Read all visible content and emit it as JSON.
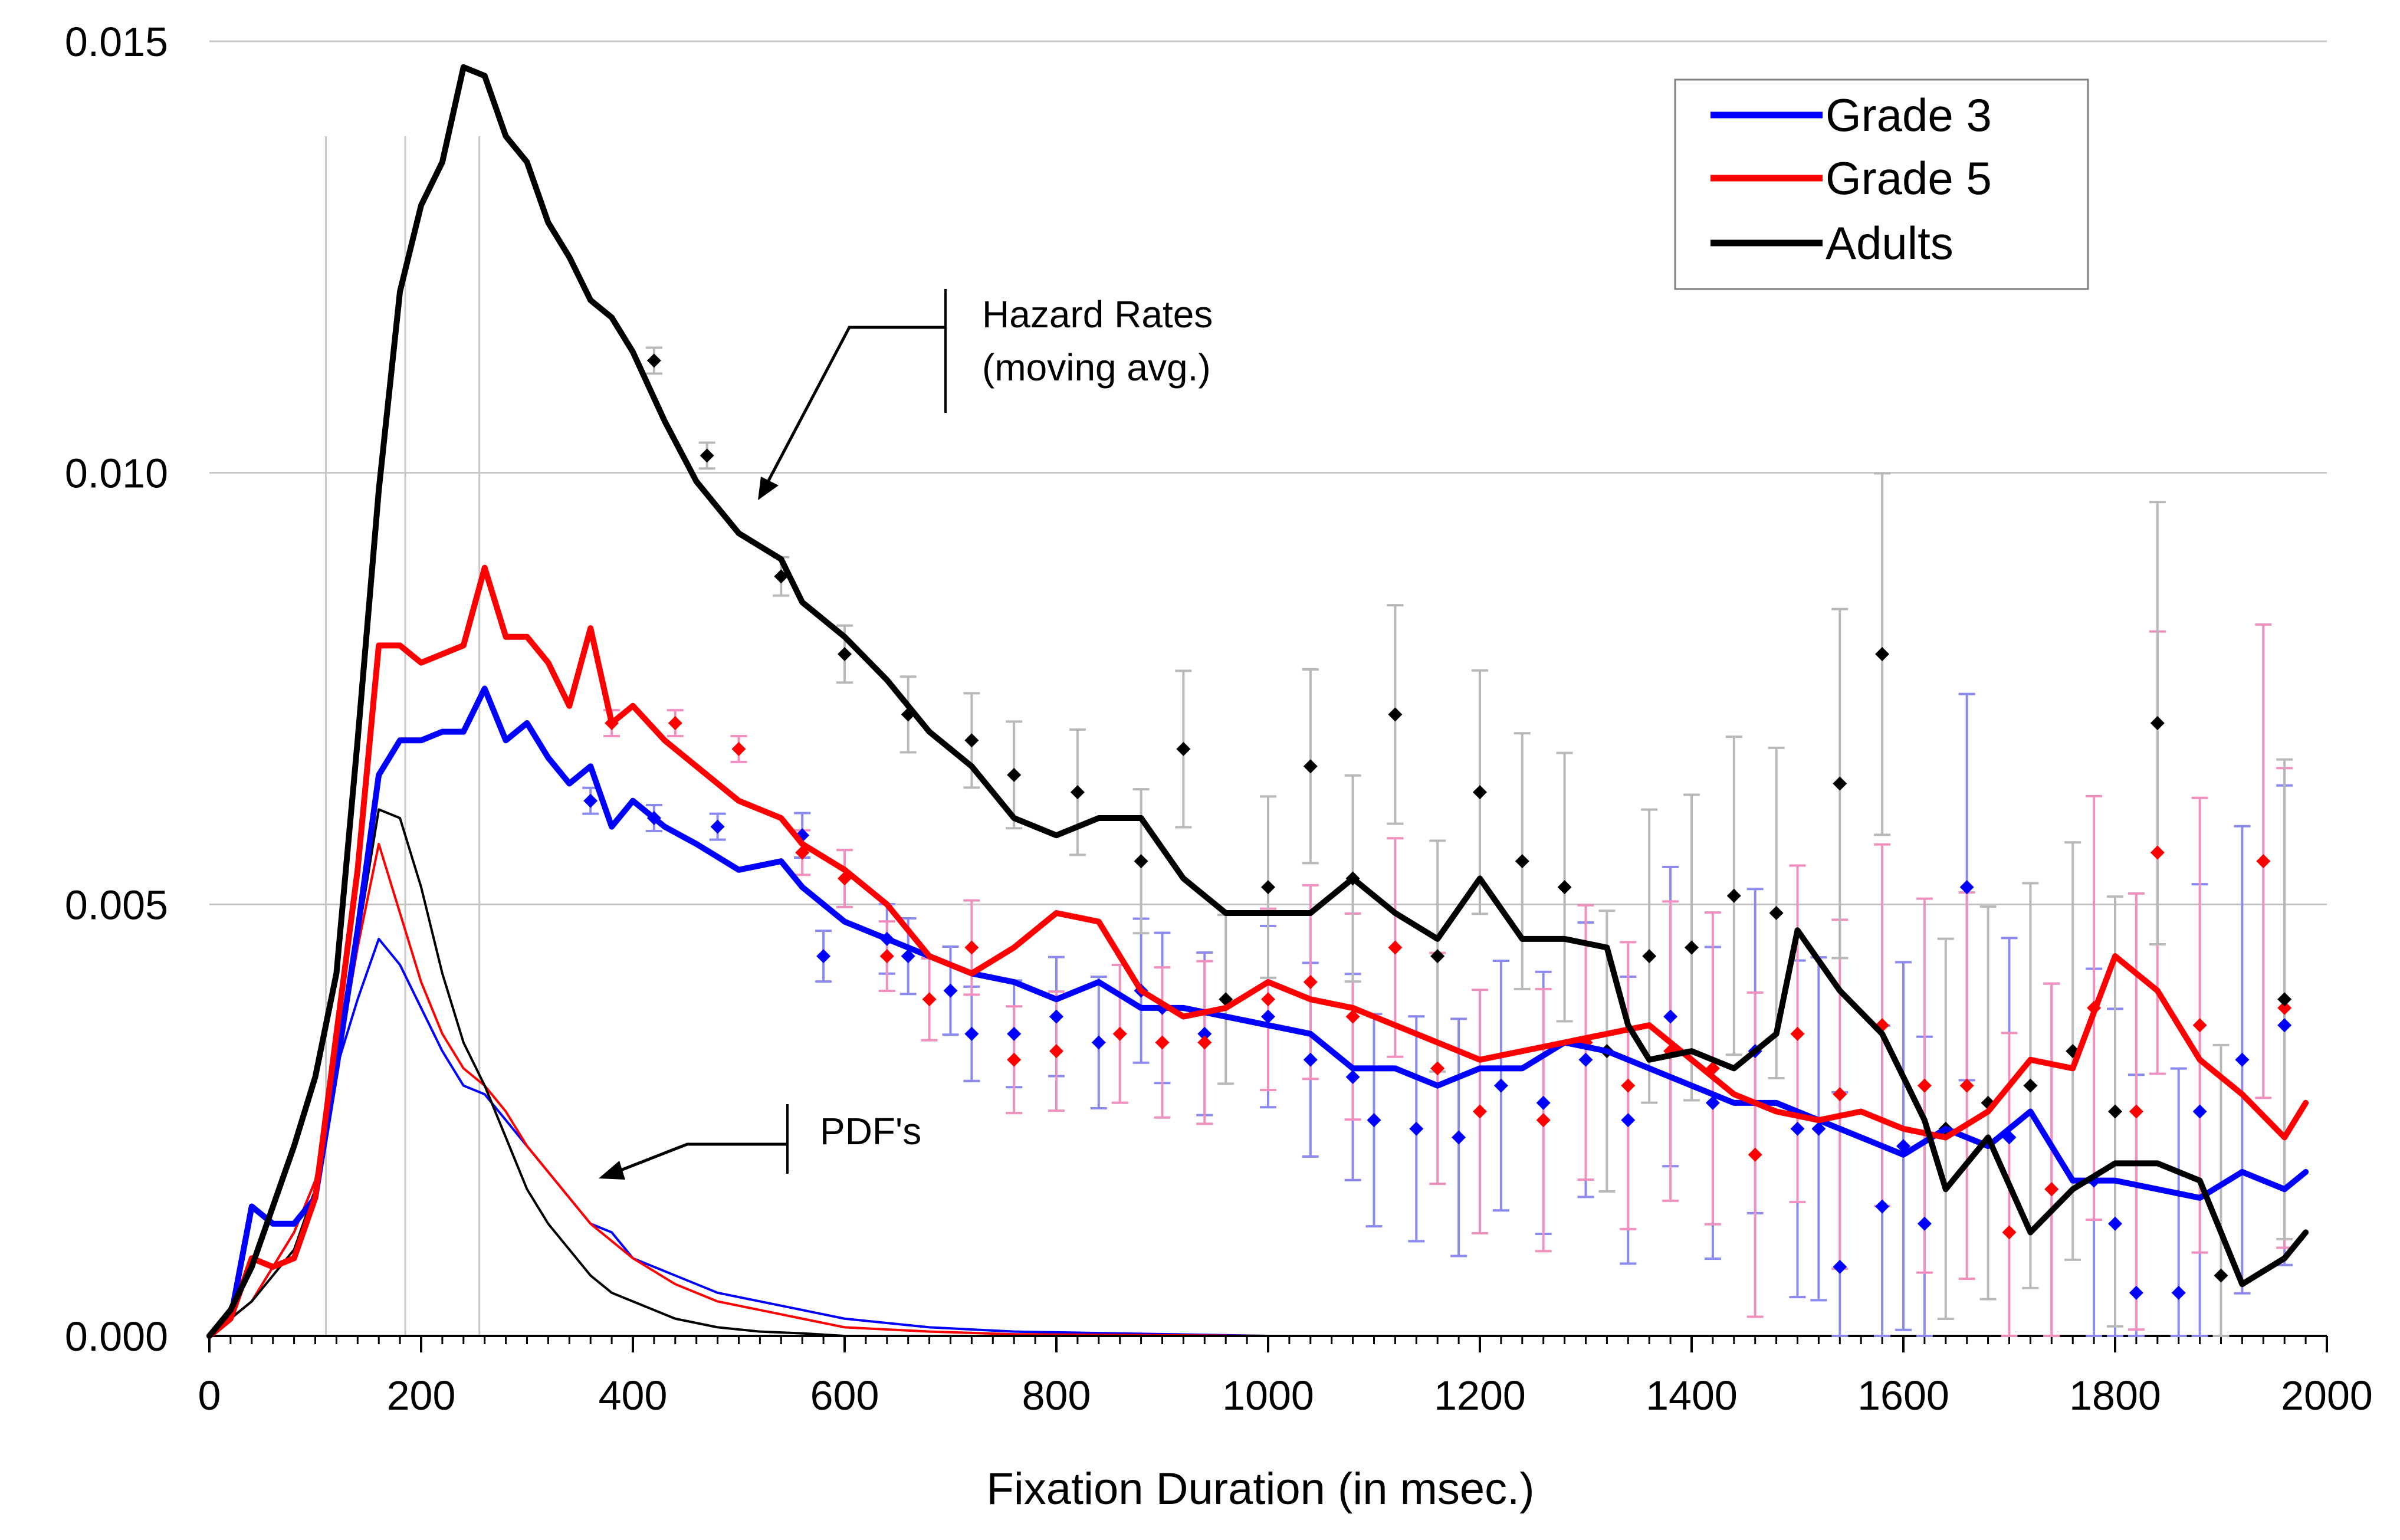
{
  "chart_data": {
    "type": "line",
    "title": "",
    "xlabel": "Fixation Duration (in msec.)",
    "ylabel": "",
    "xlim": [
      0,
      2000
    ],
    "ylim": [
      0,
      0.015
    ],
    "x_ticks": [
      "0",
      "200",
      "400",
      "600",
      "800",
      "1000",
      "1200",
      "1400",
      "1600",
      "1800",
      "2000"
    ],
    "y_ticks": [
      "0.000",
      "0.005",
      "0.010",
      "0.015"
    ],
    "grid": "horizontal",
    "legend_position": "top-right",
    "reference_lines_x": [
      110,
      185,
      255
    ],
    "legend": [
      {
        "label": "Grade 3",
        "color": "#0000ff"
      },
      {
        "label": "Grade 5",
        "color": "#ff0000"
      },
      {
        "label": "Adults",
        "color": "#000000"
      }
    ],
    "annotations": {
      "hazard": [
        "Hazard Rates",
        "(moving avg.)"
      ],
      "pdf": "PDF's"
    },
    "colors": {
      "grade3": "#0000ff",
      "grade5": "#ff0000",
      "adults": "#000000",
      "grade3_err": "#8a8af0",
      "grade5_err": "#f090bf",
      "adults_err": "#b8b8b8",
      "grid": "#c8c8c8"
    },
    "series_hazard": [
      {
        "name": "Grade 3",
        "x": [
          0,
          20,
          40,
          60,
          80,
          100,
          120,
          140,
          160,
          180,
          200,
          220,
          240,
          260,
          280,
          300,
          320,
          340,
          360,
          380,
          400,
          430,
          460,
          500,
          540,
          560,
          600,
          640,
          680,
          720,
          760,
          800,
          840,
          880,
          920,
          960,
          1000,
          1040,
          1080,
          1120,
          1160,
          1200,
          1240,
          1280,
          1320,
          1360,
          1400,
          1440,
          1480,
          1520,
          1560,
          1600,
          1640,
          1680,
          1720,
          1760,
          1800,
          1840,
          1880,
          1920,
          1960,
          1980
        ],
        "y": [
          0.0,
          0.0002,
          0.0015,
          0.0013,
          0.0013,
          0.0016,
          0.0031,
          0.0047,
          0.0065,
          0.0069,
          0.0069,
          0.007,
          0.007,
          0.0075,
          0.0069,
          0.0071,
          0.0067,
          0.0064,
          0.0066,
          0.0059,
          0.0062,
          0.0059,
          0.0057,
          0.0054,
          0.0055,
          0.0052,
          0.0048,
          0.0046,
          0.0044,
          0.0042,
          0.0041,
          0.0039,
          0.0041,
          0.0038,
          0.0038,
          0.0037,
          0.0036,
          0.0035,
          0.0031,
          0.0031,
          0.0029,
          0.0031,
          0.0031,
          0.0034,
          0.0033,
          0.0031,
          0.0029,
          0.0027,
          0.0027,
          0.0025,
          0.0023,
          0.0021,
          0.0024,
          0.0022,
          0.0026,
          0.0018,
          0.0018,
          0.0017,
          0.0016,
          0.0019,
          0.0017,
          0.0019
        ]
      },
      {
        "name": "Grade 5",
        "x": [
          0,
          20,
          40,
          60,
          80,
          100,
          120,
          140,
          160,
          180,
          200,
          220,
          240,
          260,
          280,
          300,
          320,
          340,
          360,
          380,
          400,
          430,
          460,
          500,
          540,
          560,
          600,
          640,
          680,
          720,
          760,
          800,
          840,
          880,
          920,
          960,
          1000,
          1040,
          1080,
          1120,
          1160,
          1200,
          1240,
          1280,
          1320,
          1360,
          1400,
          1440,
          1480,
          1520,
          1560,
          1600,
          1640,
          1680,
          1720,
          1760,
          1800,
          1840,
          1880,
          1920,
          1960,
          1980
        ],
        "y": [
          0.0,
          0.0002,
          0.0009,
          0.0008,
          0.0009,
          0.0016,
          0.0035,
          0.0054,
          0.008,
          0.008,
          0.0078,
          0.0079,
          0.008,
          0.0089,
          0.0081,
          0.0081,
          0.0078,
          0.0073,
          0.0082,
          0.0071,
          0.0073,
          0.0069,
          0.0066,
          0.0062,
          0.006,
          0.0057,
          0.0054,
          0.005,
          0.0044,
          0.0042,
          0.0045,
          0.0049,
          0.0048,
          0.004,
          0.0037,
          0.0038,
          0.0041,
          0.0039,
          0.0038,
          0.0036,
          0.0034,
          0.0032,
          0.0033,
          0.0034,
          0.0035,
          0.0036,
          0.0032,
          0.0028,
          0.0026,
          0.0025,
          0.0026,
          0.0024,
          0.0023,
          0.0026,
          0.0032,
          0.0031,
          0.0044,
          0.004,
          0.0032,
          0.0028,
          0.0023,
          0.0027
        ]
      },
      {
        "name": "Adults",
        "x": [
          0,
          20,
          40,
          60,
          80,
          100,
          120,
          140,
          160,
          180,
          200,
          220,
          240,
          260,
          280,
          300,
          320,
          340,
          360,
          380,
          400,
          430,
          460,
          500,
          540,
          560,
          600,
          640,
          680,
          720,
          760,
          800,
          840,
          880,
          920,
          960,
          1000,
          1040,
          1080,
          1120,
          1160,
          1200,
          1240,
          1280,
          1320,
          1340,
          1360,
          1400,
          1440,
          1480,
          1500,
          1540,
          1580,
          1620,
          1640,
          1680,
          1720,
          1760,
          1800,
          1840,
          1880,
          1920,
          1960,
          1980
        ],
        "y": [
          0.0,
          0.0003,
          0.0008,
          0.0015,
          0.0022,
          0.003,
          0.0042,
          0.0069,
          0.0098,
          0.0121,
          0.0131,
          0.0136,
          0.0147,
          0.0146,
          0.0139,
          0.0136,
          0.0129,
          0.0125,
          0.012,
          0.0118,
          0.0114,
          0.0106,
          0.0099,
          0.0093,
          0.009,
          0.0085,
          0.0081,
          0.0076,
          0.007,
          0.0066,
          0.006,
          0.0058,
          0.006,
          0.006,
          0.0053,
          0.0049,
          0.0049,
          0.0049,
          0.0053,
          0.0049,
          0.0046,
          0.0053,
          0.0046,
          0.0046,
          0.0045,
          0.0036,
          0.0032,
          0.0033,
          0.0031,
          0.0035,
          0.0047,
          0.004,
          0.0035,
          0.0025,
          0.0017,
          0.0023,
          0.0012,
          0.0017,
          0.002,
          0.002,
          0.0018,
          0.0006,
          0.0009,
          0.0012
        ]
      }
    ],
    "series_pdf": [
      {
        "name": "Grade 3 PDF",
        "x": [
          0,
          40,
          80,
          100,
          120,
          140,
          160,
          180,
          200,
          220,
          240,
          260,
          280,
          300,
          320,
          340,
          360,
          380,
          400,
          440,
          480,
          520,
          560,
          600,
          680,
          760,
          1000,
          1200,
          1600,
          2000
        ],
        "y": [
          0.0,
          0.0004,
          0.0012,
          0.0018,
          0.0031,
          0.0039,
          0.0046,
          0.0043,
          0.0038,
          0.0033,
          0.0029,
          0.0028,
          0.0025,
          0.0022,
          0.0019,
          0.0016,
          0.0013,
          0.0012,
          0.0009,
          0.0007,
          0.0005,
          0.0004,
          0.0003,
          0.0002,
          0.0001,
          5e-05,
          0.0,
          0.0,
          0.0,
          0.0
        ]
      },
      {
        "name": "Grade 5 PDF",
        "x": [
          0,
          40,
          80,
          100,
          120,
          140,
          160,
          180,
          200,
          220,
          240,
          260,
          280,
          300,
          320,
          340,
          360,
          380,
          400,
          440,
          480,
          520,
          560,
          600,
          680,
          760,
          1000,
          1200,
          1600,
          2000
        ],
        "y": [
          0.0,
          0.0004,
          0.0012,
          0.0018,
          0.0031,
          0.0045,
          0.0057,
          0.0049,
          0.0041,
          0.0035,
          0.0031,
          0.0029,
          0.0026,
          0.0022,
          0.0019,
          0.0016,
          0.0013,
          0.0011,
          0.0009,
          0.0006,
          0.0004,
          0.0003,
          0.0002,
          0.0001,
          5e-05,
          2e-05,
          0.0,
          0.0,
          0.0,
          0.0
        ]
      },
      {
        "name": "Adults PDF",
        "x": [
          0,
          40,
          80,
          100,
          120,
          140,
          160,
          180,
          200,
          220,
          240,
          260,
          280,
          300,
          320,
          340,
          360,
          380,
          400,
          440,
          480,
          520,
          560,
          600,
          680,
          760,
          1000,
          1200,
          1600,
          2000
        ],
        "y": [
          0.0,
          0.0004,
          0.001,
          0.0017,
          0.0031,
          0.0046,
          0.0061,
          0.006,
          0.0052,
          0.0042,
          0.0034,
          0.0029,
          0.0023,
          0.0017,
          0.0013,
          0.001,
          0.0007,
          0.0005,
          0.0004,
          0.0002,
          0.0001,
          5e-05,
          3e-05,
          0.0,
          0.0,
          0.0,
          0.0,
          0.0,
          0.0,
          0.0
        ]
      }
    ],
    "scatter_points": [
      {
        "name": "Grade 3",
        "x": [
          360,
          420,
          480,
          560,
          580,
          640,
          660,
          700,
          720,
          760,
          800,
          840,
          880,
          900,
          940,
          1000,
          1040,
          1080,
          1100,
          1140,
          1180,
          1220,
          1260,
          1300,
          1340,
          1380,
          1420,
          1460,
          1500,
          1520,
          1540,
          1580,
          1600,
          1620,
          1660,
          1700,
          1740,
          1780,
          1800,
          1820,
          1860,
          1880,
          1920,
          1960
        ],
        "y": [
          0.0062,
          0.006,
          0.0059,
          0.0058,
          0.0044,
          0.0046,
          0.0044,
          0.004,
          0.0035,
          0.0035,
          0.0037,
          0.0034,
          0.004,
          0.0038,
          0.0035,
          0.0037,
          0.0032,
          0.003,
          0.0025,
          0.0024,
          0.0023,
          0.0029,
          0.0027,
          0.0032,
          0.0025,
          0.0037,
          0.0027,
          0.0033,
          0.0024,
          0.0024,
          0.0008,
          0.0015,
          0.0022,
          0.0013,
          0.0052,
          0.0023,
          0.0017,
          0.0018,
          0.0013,
          0.0005,
          0.0005,
          0.0026,
          0.0032,
          0.0036
        ]
      },
      {
        "name": "Grade 5",
        "x": [
          380,
          440,
          500,
          560,
          600,
          640,
          680,
          720,
          760,
          800,
          860,
          900,
          940,
          1000,
          1040,
          1080,
          1120,
          1160,
          1200,
          1260,
          1300,
          1340,
          1380,
          1420,
          1460,
          1500,
          1540,
          1580,
          1620,
          1660,
          1700,
          1740,
          1780,
          1820,
          1840,
          1880,
          1940,
          1960
        ],
        "y": [
          0.0071,
          0.0071,
          0.0068,
          0.0056,
          0.0053,
          0.0044,
          0.0039,
          0.0045,
          0.0032,
          0.0033,
          0.0035,
          0.0034,
          0.0034,
          0.0039,
          0.0041,
          0.0037,
          0.0045,
          0.0031,
          0.0026,
          0.0025,
          0.0034,
          0.0029,
          0.0033,
          0.0031,
          0.0021,
          0.0035,
          0.0028,
          0.0036,
          0.0029,
          0.0029,
          0.0012,
          0.0017,
          0.0038,
          0.0026,
          0.0056,
          0.0036,
          0.0055,
          0.0038
        ]
      },
      {
        "name": "Adults",
        "x": [
          420,
          470,
          540,
          600,
          660,
          720,
          760,
          820,
          880,
          920,
          960,
          1000,
          1040,
          1080,
          1120,
          1160,
          1200,
          1240,
          1280,
          1320,
          1360,
          1400,
          1440,
          1480,
          1540,
          1580,
          1640,
          1680,
          1720,
          1760,
          1800,
          1840,
          1900,
          1960
        ],
        "y": [
          0.0113,
          0.0102,
          0.0088,
          0.0079,
          0.0072,
          0.0069,
          0.0065,
          0.0063,
          0.0055,
          0.0068,
          0.0039,
          0.0052,
          0.0066,
          0.0053,
          0.0072,
          0.0044,
          0.0063,
          0.0055,
          0.0052,
          0.0033,
          0.0044,
          0.0045,
          0.0051,
          0.0049,
          0.0064,
          0.0079,
          0.0024,
          0.0027,
          0.0029,
          0.0033,
          0.0026,
          0.0071,
          0.0007,
          0.0039
        ]
      }
    ]
  }
}
